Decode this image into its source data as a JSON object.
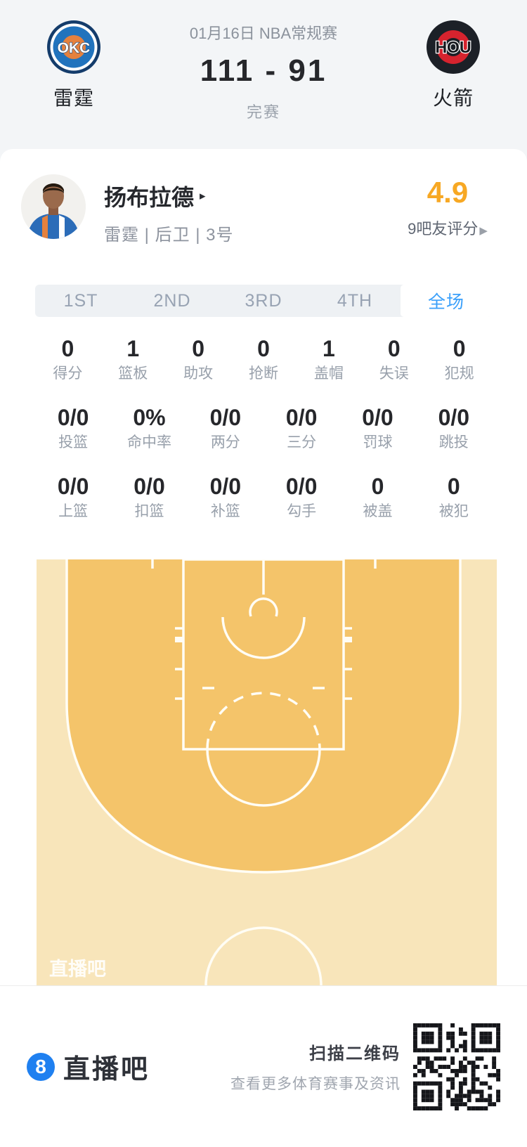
{
  "header": {
    "date_label": "01月16日 NBA常规赛",
    "score": "111 - 91",
    "status": "完赛",
    "home_team": {
      "abbr": "OKC",
      "name": "雷霆"
    },
    "away_team": {
      "abbr": "HOU",
      "name": "火箭"
    }
  },
  "player": {
    "name": "扬布拉德",
    "name_arrow": "▸",
    "info": "雷霆 | 后卫 | 3号",
    "rating": "4.9",
    "rating_label": "9吧友评分",
    "rating_arrow": "▶"
  },
  "tabs": [
    {
      "label": "1ST",
      "active": false
    },
    {
      "label": "2ND",
      "active": false
    },
    {
      "label": "3RD",
      "active": false
    },
    {
      "label": "4TH",
      "active": false
    },
    {
      "label": "全场",
      "active": true
    }
  ],
  "stats": {
    "rows": [
      {
        "cells": [
          {
            "value": "0",
            "label": "得分"
          },
          {
            "value": "1",
            "label": "篮板"
          },
          {
            "value": "0",
            "label": "助攻"
          },
          {
            "value": "0",
            "label": "抢断"
          },
          {
            "value": "1",
            "label": "盖帽"
          },
          {
            "value": "0",
            "label": "失误"
          },
          {
            "value": "0",
            "label": "犯规"
          }
        ]
      },
      {
        "cells": [
          {
            "value": "0/0",
            "label": "投篮"
          },
          {
            "value": "0%",
            "label": "命中率"
          },
          {
            "value": "0/0",
            "label": "两分"
          },
          {
            "value": "0/0",
            "label": "三分"
          },
          {
            "value": "0/0",
            "label": "罚球"
          },
          {
            "value": "0/0",
            "label": "跳投"
          }
        ]
      },
      {
        "cells": [
          {
            "value": "0/0",
            "label": "上篮"
          },
          {
            "value": "0/0",
            "label": "扣篮"
          },
          {
            "value": "0/0",
            "label": "补篮"
          },
          {
            "value": "0/0",
            "label": "勾手"
          },
          {
            "value": "0",
            "label": "被盖"
          },
          {
            "value": "0",
            "label": "被犯"
          }
        ]
      }
    ]
  },
  "court": {
    "watermark": "直播吧"
  },
  "footer": {
    "logo_number": "8",
    "brand": "直播吧",
    "scan_title": "扫描二维码",
    "scan_subtitle": "查看更多体育赛事及资讯"
  },
  "colors": {
    "accent_blue": "#3ba0fa",
    "rating_orange": "#f7a824",
    "court_outer": "#f8e5ba",
    "court_inner": "#f4c46a",
    "court_line": "#fffdf5",
    "header_bg": "#f3f5f7",
    "brand_blue": "#1f80f0"
  }
}
